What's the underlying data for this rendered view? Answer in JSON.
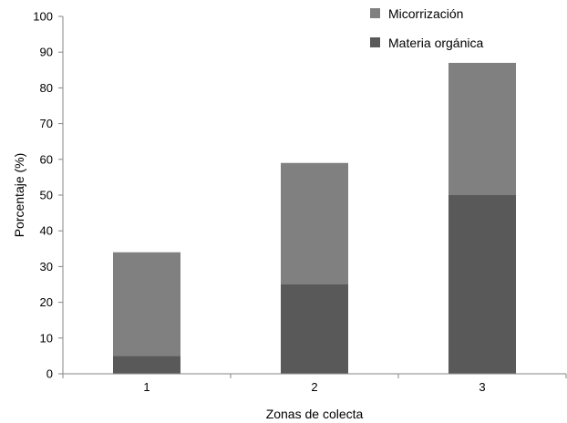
{
  "chart_data": {
    "type": "bar",
    "stacked": true,
    "categories": [
      "1",
      "2",
      "3"
    ],
    "series": [
      {
        "name": "Materia orgánica",
        "values": [
          5,
          25,
          50
        ],
        "color": "#595959"
      },
      {
        "name": "Micorrización",
        "values": [
          29,
          34,
          37
        ],
        "color": "#808080"
      }
    ],
    "totals": [
      34,
      59,
      87
    ],
    "title": "",
    "xlabel": "Zonas de colecta",
    "ylabel": "Porcentaje (%)",
    "ylim": [
      0,
      100
    ],
    "yticks": [
      "0",
      "10",
      "20",
      "30",
      "40",
      "50",
      "60",
      "70",
      "80",
      "90",
      "100"
    ],
    "grid": false,
    "legend_position": "top-right"
  }
}
